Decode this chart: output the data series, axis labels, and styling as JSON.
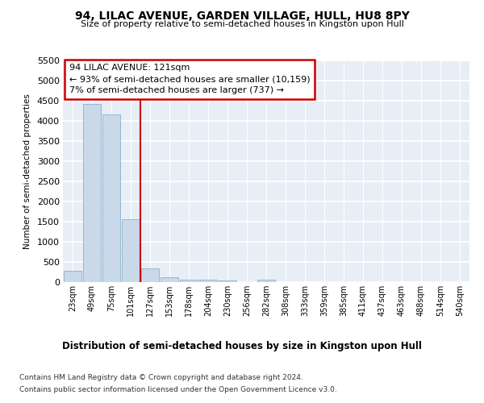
{
  "title": "94, LILAC AVENUE, GARDEN VILLAGE, HULL, HU8 8PY",
  "subtitle": "Size of property relative to semi-detached houses in Kingston upon Hull",
  "xlabel": "Distribution of semi-detached houses by size in Kingston upon Hull",
  "ylabel": "Number of semi-detached properties",
  "footer1": "Contains HM Land Registry data © Crown copyright and database right 2024.",
  "footer2": "Contains public sector information licensed under the Open Government Licence v3.0.",
  "bar_labels": [
    "23sqm",
    "49sqm",
    "75sqm",
    "101sqm",
    "127sqm",
    "153sqm",
    "178sqm",
    "204sqm",
    "230sqm",
    "256sqm",
    "282sqm",
    "308sqm",
    "333sqm",
    "359sqm",
    "385sqm",
    "411sqm",
    "437sqm",
    "463sqm",
    "488sqm",
    "514sqm",
    "540sqm"
  ],
  "bar_values": [
    290,
    4420,
    4150,
    1560,
    350,
    125,
    65,
    55,
    45,
    0,
    65,
    0,
    0,
    0,
    0,
    0,
    0,
    0,
    0,
    0,
    0
  ],
  "bar_color": "#c9d9ea",
  "bar_edge_color": "#88b0cc",
  "property_line_bar_index": 4,
  "annotation_title": "94 LILAC AVENUE: 121sqm",
  "annotation_line1": "← 93% of semi-detached houses are smaller (10,159)",
  "annotation_line2": "7% of semi-detached houses are larger (737) →",
  "annotation_box_facecolor": "#ffffff",
  "annotation_box_edgecolor": "#cc0000",
  "property_line_color": "#cc0000",
  "ylim": [
    0,
    5500
  ],
  "yticks": [
    0,
    500,
    1000,
    1500,
    2000,
    2500,
    3000,
    3500,
    4000,
    4500,
    5000,
    5500
  ],
  "plot_bg_color": "#e8eef5",
  "grid_color": "#ffffff",
  "fig_bg_color": "#ffffff"
}
